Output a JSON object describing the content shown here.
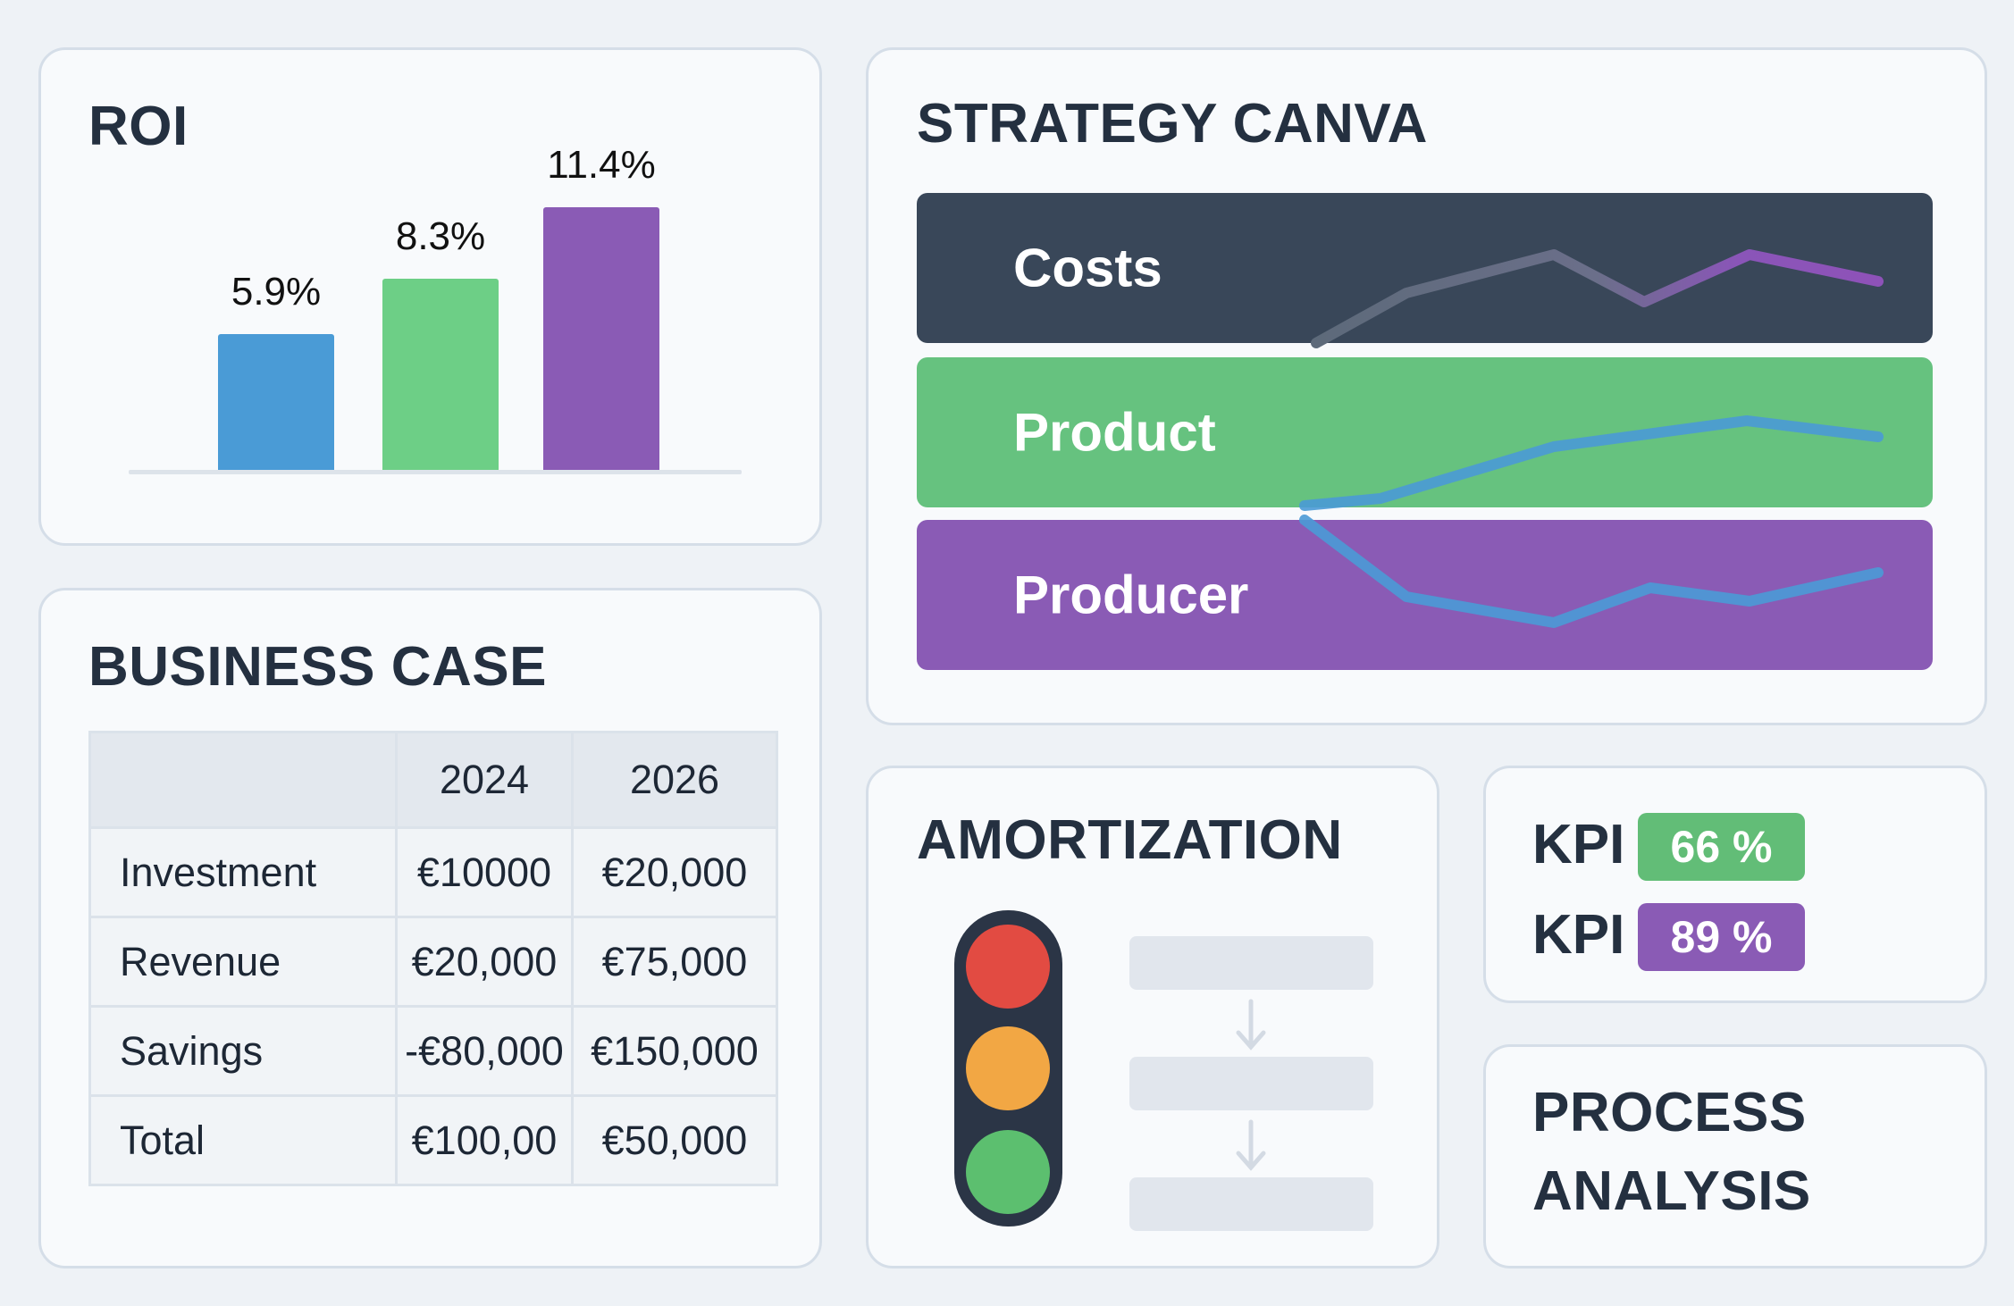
{
  "roi": {
    "title": "ROI",
    "chart_data": {
      "type": "bar",
      "categories": [
        "",
        "",
        ""
      ],
      "values": [
        5.9,
        8.3,
        11.4
      ],
      "labels": [
        "5.9%",
        "8.3%",
        "11.4%"
      ],
      "colors": [
        "#4a9bd6",
        "#6dcf86",
        "#8a5bb5"
      ],
      "ylim": [
        0,
        12
      ],
      "grid": false
    }
  },
  "business_case": {
    "title": "BUSINESS CASE",
    "columns": [
      "",
      "2024",
      "2026"
    ],
    "rows": [
      {
        "label": "Investment",
        "values": [
          "€10000",
          "€20,000"
        ]
      },
      {
        "label": "Revenue",
        "values": [
          "€20,000",
          "€75,000"
        ]
      },
      {
        "label": "Savings",
        "values": [
          "-€80,000",
          "€150,000"
        ]
      },
      {
        "label": "Total",
        "values": [
          "€100,00",
          "€50,000"
        ]
      }
    ]
  },
  "strategy": {
    "title": "STRATEGY CANVA",
    "bands": [
      {
        "label": "Costs",
        "color": "#394759"
      },
      {
        "label": "Product",
        "color": "#66c27f"
      },
      {
        "label": "Producer",
        "color": "#8a5bb5"
      }
    ]
  },
  "amortization": {
    "title": "AMORTIZATION",
    "traffic_light_colors": [
      "#e24b42",
      "#f2a744",
      "#5cbf6f"
    ]
  },
  "kpi": {
    "items": [
      {
        "label": "KPI",
        "value": "66 %",
        "color": "#62bd77"
      },
      {
        "label": "KPI",
        "value": "89 %",
        "color": "#8a5bb5"
      }
    ]
  },
  "process": {
    "title_line1": "PROCESS",
    "title_line2": "ANALYSIS"
  }
}
